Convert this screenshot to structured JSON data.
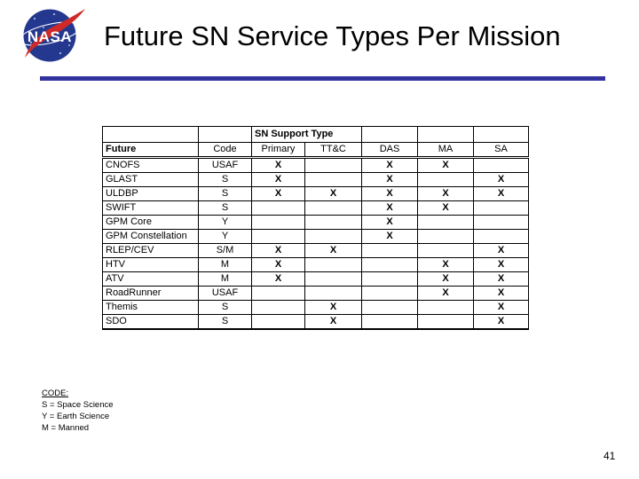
{
  "header": {
    "title": "Future SN Service Types Per Mission",
    "logo": {
      "text": "NASA"
    }
  },
  "table": {
    "span_header": "SN Support Type",
    "columns": [
      "Future",
      "Code",
      "Primary",
      "TT&C",
      "DAS",
      "MA",
      "SA"
    ],
    "rows": [
      [
        "CNOFS",
        "USAF",
        "X",
        "",
        "X",
        "X",
        ""
      ],
      [
        "GLAST",
        "S",
        "X",
        "",
        "X",
        "",
        "X"
      ],
      [
        "ULDBP",
        "S",
        "X",
        "X",
        "X",
        "X",
        "X"
      ],
      [
        "SWIFT",
        "S",
        "",
        "",
        "X",
        "X",
        ""
      ],
      [
        "GPM Core",
        "Y",
        "",
        "",
        "X",
        "",
        ""
      ],
      [
        "GPM Constellation",
        "Y",
        "",
        "",
        "X",
        "",
        ""
      ],
      [
        "RLEP/CEV",
        "S/M",
        "X",
        "X",
        "",
        "",
        "X"
      ],
      [
        "HTV",
        "M",
        "X",
        "",
        "",
        "X",
        "X"
      ],
      [
        "ATV",
        "M",
        "X",
        "",
        "",
        "X",
        "X"
      ],
      [
        "RoadRunner",
        "USAF",
        "",
        "",
        "",
        "X",
        "X"
      ],
      [
        "Themis",
        "S",
        "",
        "X",
        "",
        "",
        "X"
      ],
      [
        "SDO",
        "S",
        "",
        "X",
        "",
        "",
        "X"
      ]
    ]
  },
  "legend": {
    "heading": "CODE:",
    "items": [
      "S = Space Science",
      "Y = Earth Science",
      "M = Manned"
    ]
  },
  "footer": {
    "page_number": "41"
  },
  "colors": {
    "divider_blue": "#3333a0",
    "logo_blue": "#24388f",
    "logo_red": "#cf2a27"
  }
}
